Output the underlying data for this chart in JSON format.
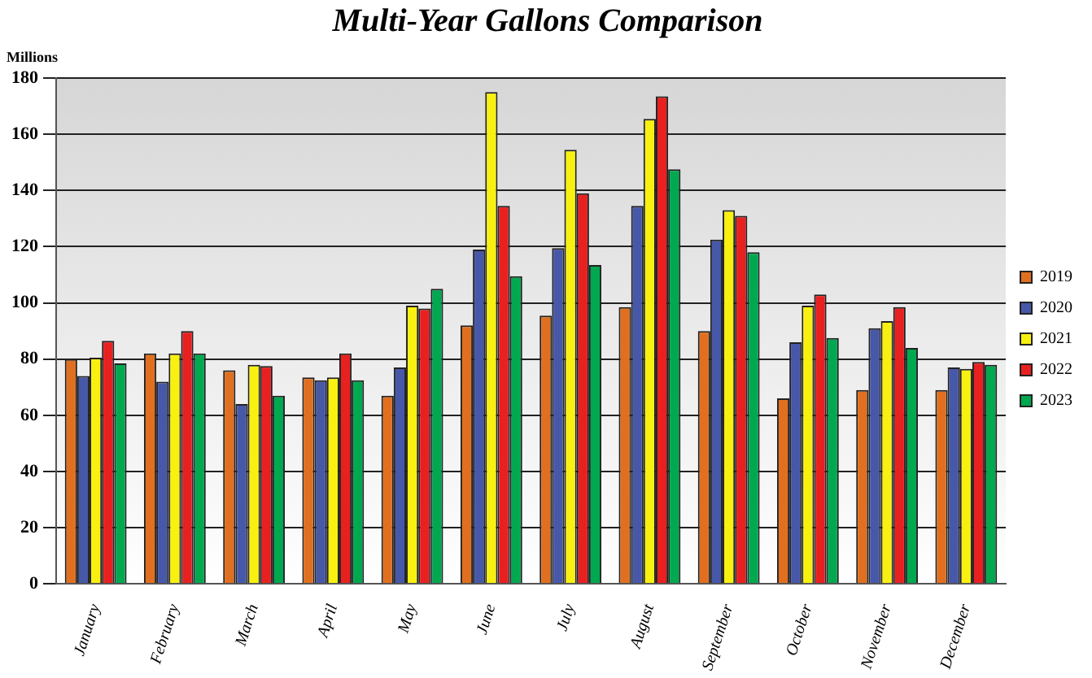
{
  "chart_data": {
    "type": "bar",
    "title": "Multi-Year Gallons Comparison",
    "ylabel": "Millions",
    "categories": [
      "January",
      "February",
      "March",
      "April",
      "May",
      "June",
      "July",
      "August",
      "September",
      "October",
      "November",
      "December"
    ],
    "series": [
      {
        "name": "2019",
        "color": "#e07020",
        "values": [
          80,
          82,
          76,
          73.5,
          67,
          92,
          95.5,
          98.5,
          90,
          66,
          69,
          69
        ]
      },
      {
        "name": "2020",
        "color": "#4858a8",
        "values": [
          74,
          72,
          64,
          72.5,
          77,
          119,
          119.5,
          134.5,
          122.5,
          86,
          91,
          77
        ]
      },
      {
        "name": "2021",
        "color": "#f8f010",
        "values": [
          80.5,
          82,
          78,
          73.5,
          99,
          175,
          154.5,
          165.5,
          133,
          99,
          93.5,
          76.5
        ]
      },
      {
        "name": "2022",
        "color": "#e82020",
        "values": [
          86.5,
          90,
          77.5,
          82,
          98,
          134.5,
          139,
          173.5,
          131,
          103,
          98.5,
          79
        ]
      },
      {
        "name": "2023",
        "color": "#00a850",
        "values": [
          78.5,
          82,
          67,
          72.5,
          105,
          109.5,
          113.5,
          147.5,
          118,
          87.5,
          84,
          78
        ]
      }
    ],
    "ylim": [
      0,
      180
    ],
    "yticks": [
      0,
      20,
      40,
      60,
      80,
      100,
      120,
      140,
      160,
      180
    ],
    "grid": "y",
    "legend": "right"
  }
}
